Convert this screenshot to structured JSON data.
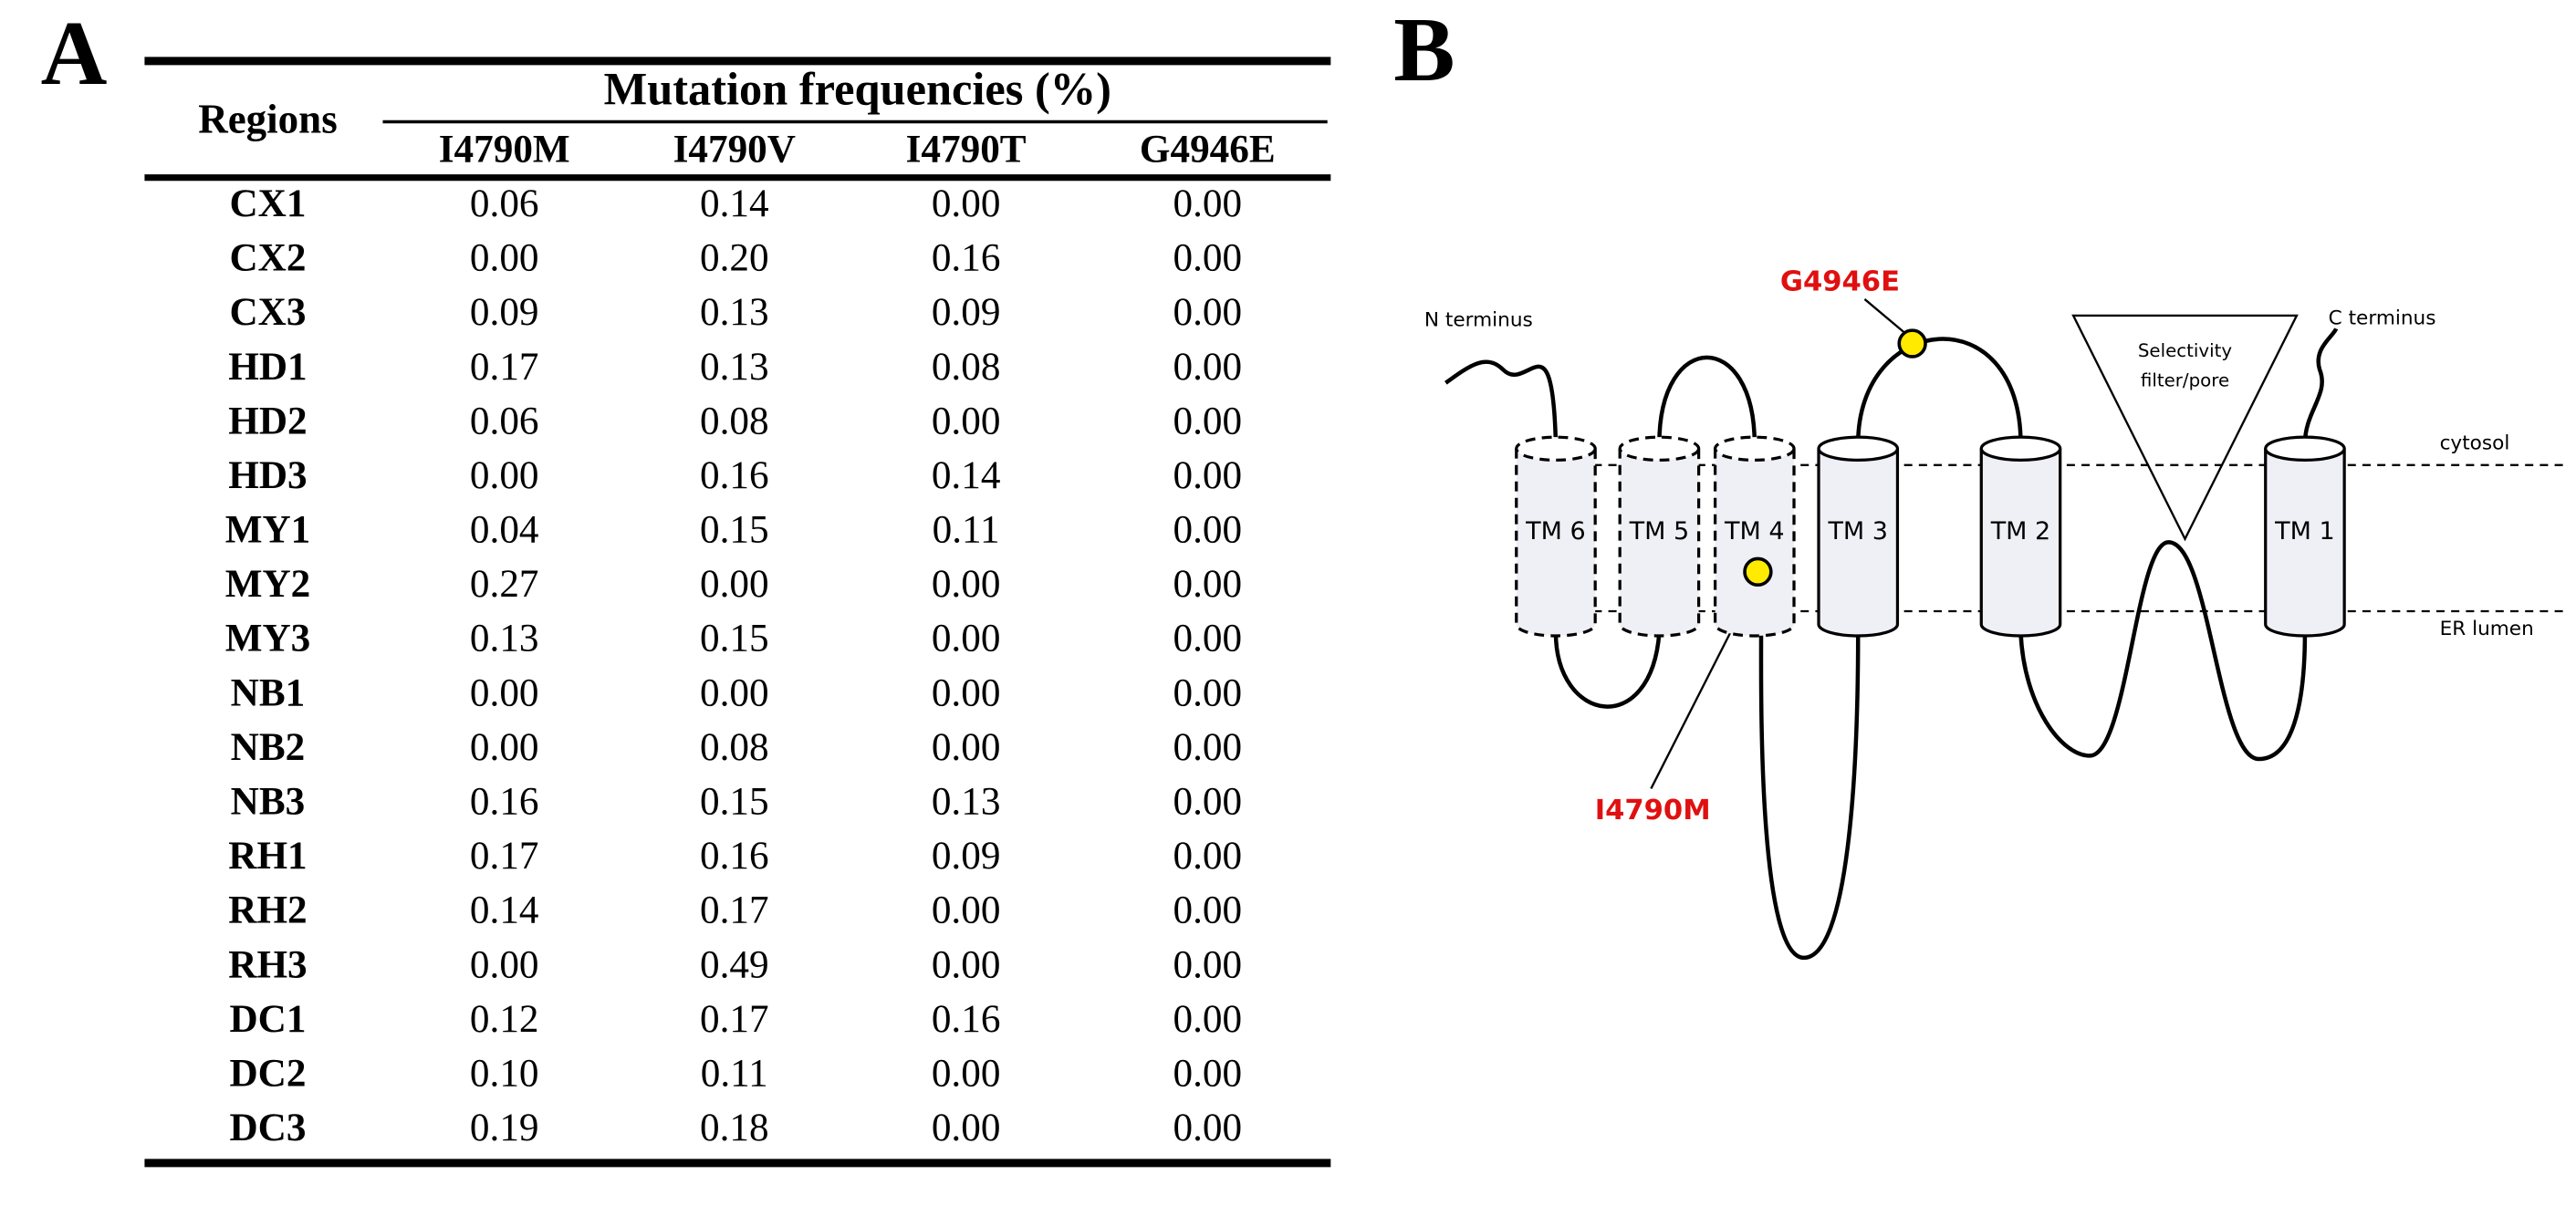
{
  "panels": {
    "a": "A",
    "b": "B"
  },
  "table": {
    "header": {
      "regions": "Regions",
      "group": "Mutation frequencies  (%)",
      "columns": [
        "I4790M",
        "I4790V",
        "I4790T",
        "G4946E"
      ]
    },
    "rows": [
      [
        "CX1",
        "0.06",
        "0.14",
        "0.00",
        "0.00"
      ],
      [
        "CX2",
        "0.00",
        "0.20",
        "0.16",
        "0.00"
      ],
      [
        "CX3",
        "0.09",
        "0.13",
        "0.09",
        "0.00"
      ],
      [
        "HD1",
        "0.17",
        "0.13",
        "0.08",
        "0.00"
      ],
      [
        "HD2",
        "0.06",
        "0.08",
        "0.00",
        "0.00"
      ],
      [
        "HD3",
        "0.00",
        "0.16",
        "0.14",
        "0.00"
      ],
      [
        "MY1",
        "0.04",
        "0.15",
        "0.11",
        "0.00"
      ],
      [
        "MY2",
        "0.27",
        "0.00",
        "0.00",
        "0.00"
      ],
      [
        "MY3",
        "0.13",
        "0.15",
        "0.00",
        "0.00"
      ],
      [
        "NB1",
        "0.00",
        "0.00",
        "0.00",
        "0.00"
      ],
      [
        "NB2",
        "0.00",
        "0.08",
        "0.00",
        "0.00"
      ],
      [
        "NB3",
        "0.16",
        "0.15",
        "0.13",
        "0.00"
      ],
      [
        "RH1",
        "0.17",
        "0.16",
        "0.09",
        "0.00"
      ],
      [
        "RH2",
        "0.14",
        "0.17",
        "0.00",
        "0.00"
      ],
      [
        "RH3",
        "0.00",
        "0.49",
        "0.00",
        "0.00"
      ],
      [
        "DC1",
        "0.12",
        "0.17",
        "0.16",
        "0.00"
      ],
      [
        "DC2",
        "0.10",
        "0.11",
        "0.00",
        "0.00"
      ],
      [
        "DC3",
        "0.19",
        "0.18",
        "0.00",
        "0.00"
      ]
    ]
  },
  "diagram": {
    "n_terminus": "N terminus",
    "c_terminus": "C terminus",
    "cytosol": "cytosol",
    "er_lumen": "ER lumen",
    "pore": [
      "Selectivity",
      "filter/pore"
    ],
    "segments": [
      "TM 6",
      "TM 5",
      "TM 4",
      "TM 3",
      "TM 2",
      "TM 1"
    ],
    "mutations": [
      "G4946E",
      "I4790M"
    ]
  }
}
